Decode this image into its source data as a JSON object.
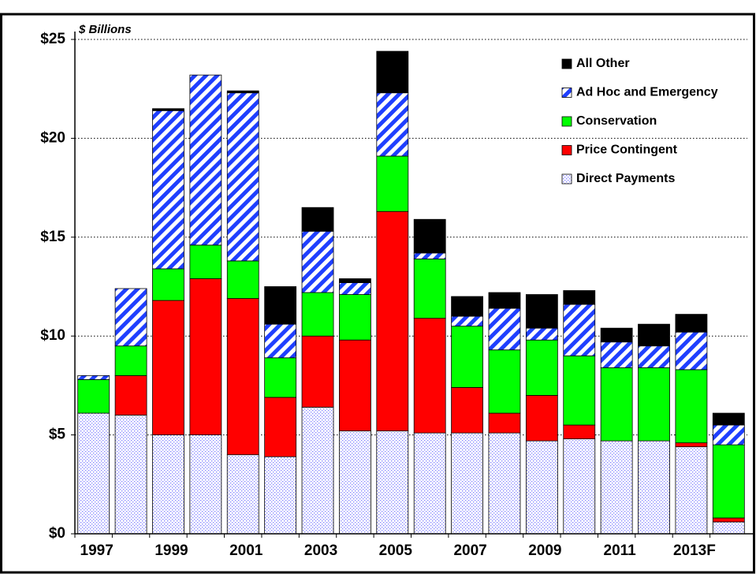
{
  "chart_data": {
    "type": "stacked-bar",
    "annotation": "$ Billions",
    "categories": [
      "1997",
      null,
      "1999",
      null,
      "2001",
      null,
      "2003",
      null,
      "2005",
      null,
      "2007",
      null,
      "2009",
      null,
      "2011",
      null,
      "2013F",
      null
    ],
    "series": [
      {
        "name": "Direct Payments",
        "color": "#8080ff",
        "pattern": "dots",
        "values": [
          6.1,
          6.0,
          5.0,
          5.0,
          4.0,
          3.9,
          6.4,
          5.2,
          5.2,
          5.1,
          5.1,
          5.1,
          4.7,
          4.8,
          4.7,
          4.7,
          4.4,
          0.6
        ]
      },
      {
        "name": "Price Contingent",
        "color": "#ff0000",
        "values": [
          0,
          2.0,
          6.8,
          7.9,
          7.9,
          3.0,
          3.6,
          4.6,
          11.1,
          5.8,
          2.3,
          1.0,
          2.3,
          0.7,
          0,
          0,
          0.2,
          0.2
        ]
      },
      {
        "name": "Conservation",
        "color": "#00ff00",
        "values": [
          1.7,
          1.5,
          1.6,
          1.7,
          1.9,
          2.0,
          2.2,
          2.3,
          2.8,
          3.0,
          3.1,
          3.2,
          2.8,
          3.5,
          3.7,
          3.7,
          3.7,
          3.7
        ]
      },
      {
        "name": "Ad Hoc and Emergency",
        "color": "#1f3fff",
        "pattern": "stripes",
        "values": [
          0.2,
          2.9,
          8.0,
          8.6,
          8.5,
          1.7,
          3.1,
          0.6,
          3.2,
          0.3,
          0.5,
          2.1,
          0.6,
          2.6,
          1.3,
          1.1,
          1.9,
          1.0
        ]
      },
      {
        "name": "All Other",
        "color": "#000000",
        "values": [
          0,
          0,
          0.1,
          0,
          0.1,
          1.9,
          1.2,
          0.2,
          2.1,
          1.7,
          1.0,
          0.8,
          1.7,
          0.7,
          0.7,
          1.1,
          0.9,
          0.6
        ]
      }
    ],
    "ylim": [
      0,
      25
    ],
    "yticks": [
      {
        "value": 0,
        "label": "$0"
      },
      {
        "value": 5,
        "label": "$5"
      },
      {
        "value": 10,
        "label": "$10"
      },
      {
        "value": 15,
        "label": "$15"
      },
      {
        "value": 20,
        "label": "$20"
      },
      {
        "value": 25,
        "label": "$25"
      }
    ],
    "grid": true,
    "legend": "upper right"
  }
}
